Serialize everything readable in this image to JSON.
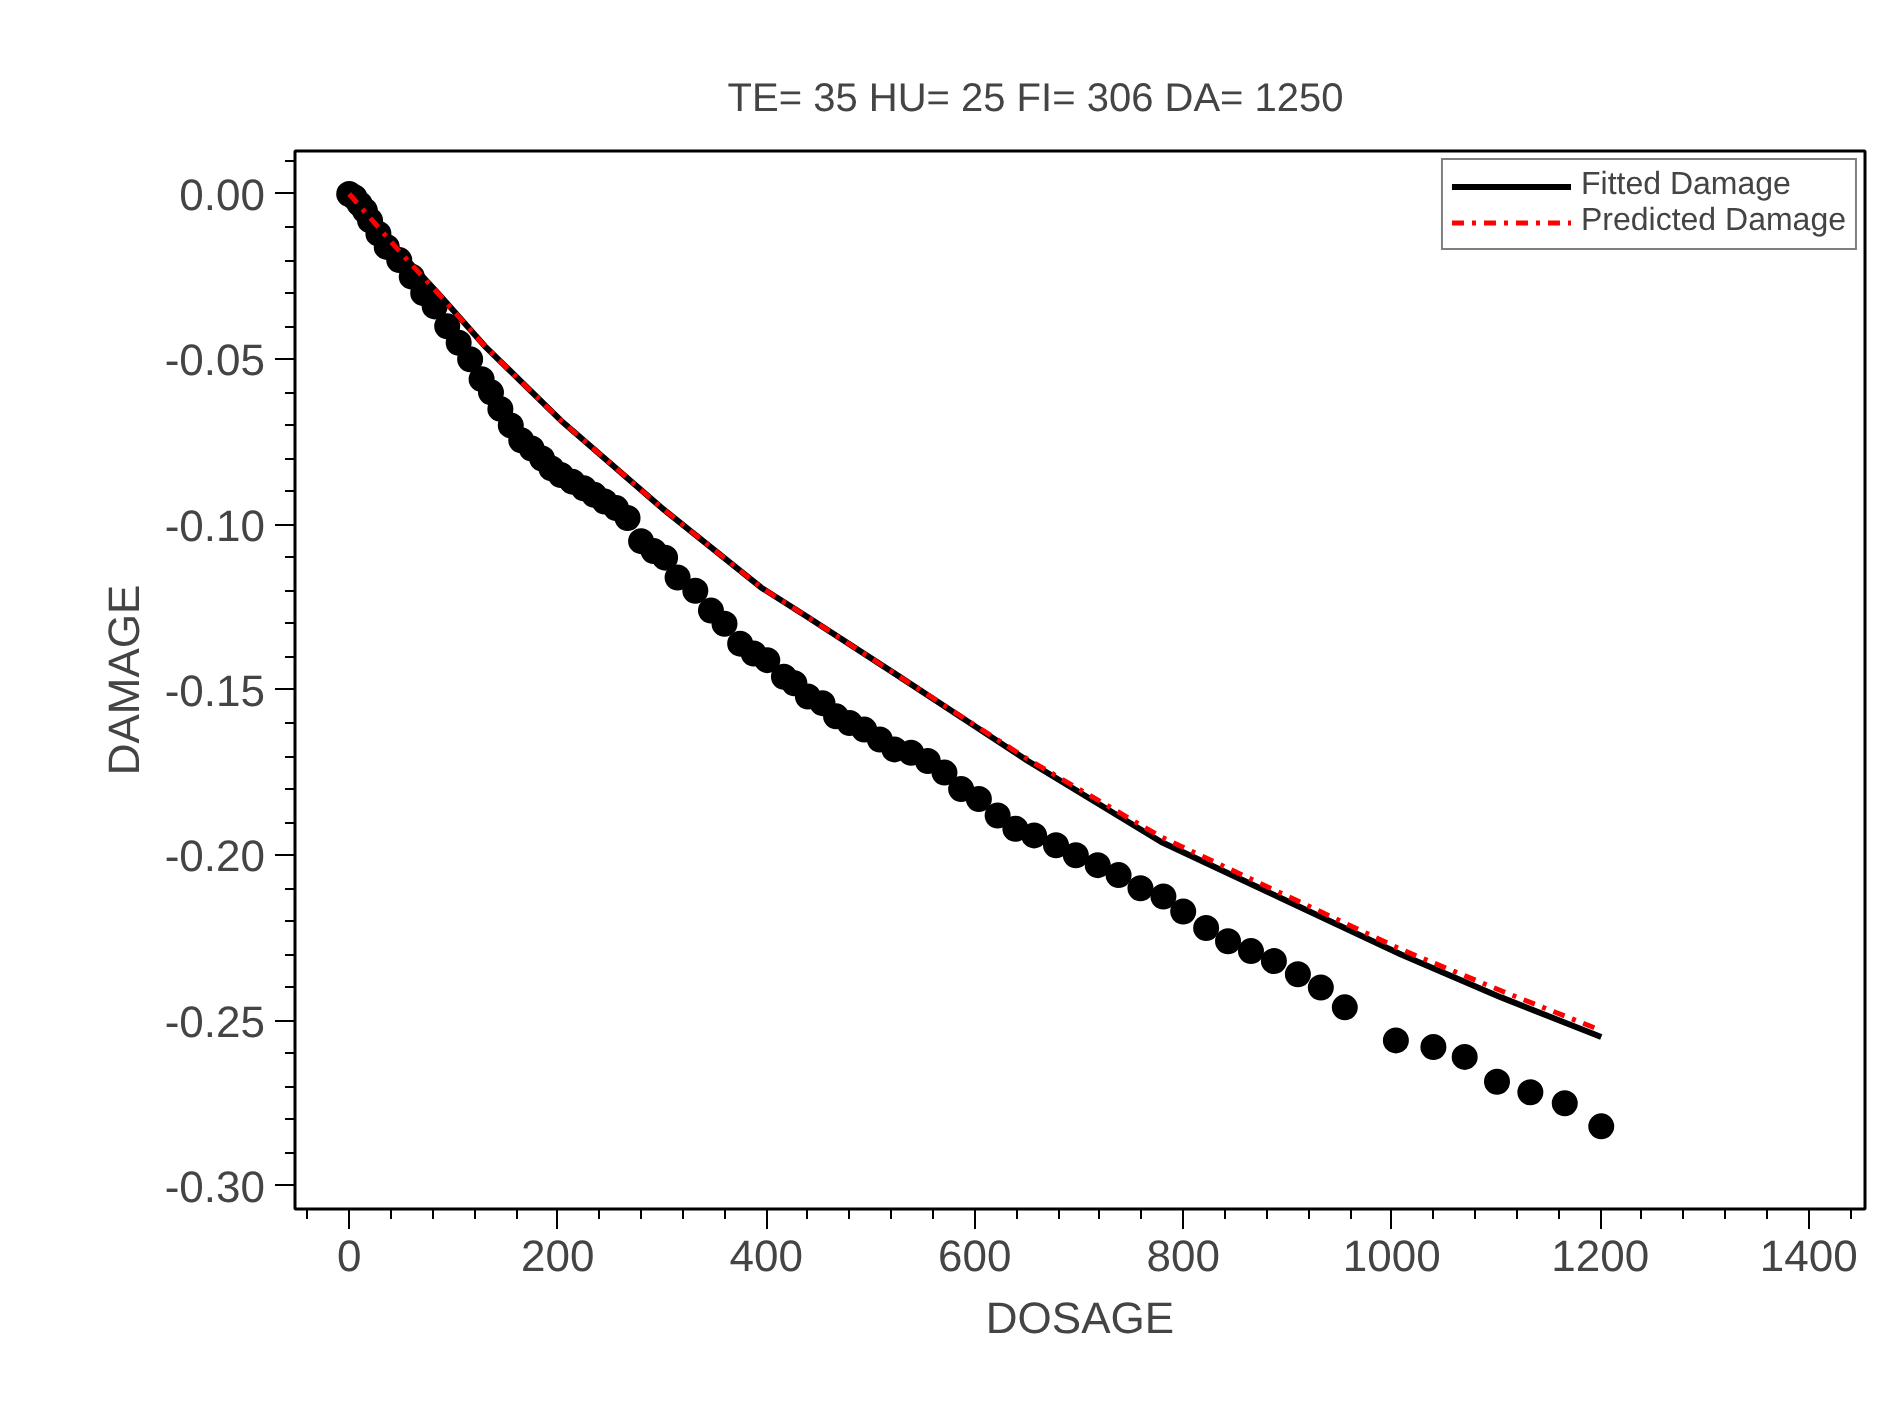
{
  "chart_data": {
    "type": "scatter",
    "title": "TE=  35  HU=  25   FI=  306  DA=  1250",
    "xlabel": "DOSAGE",
    "ylabel": "DAMAGE",
    "xlim": [
      -52,
      1454
    ],
    "ylim": [
      -0.307,
      0.013
    ],
    "xticks": [
      0,
      200,
      400,
      600,
      800,
      1000,
      1200,
      1400
    ],
    "yticks": [
      {
        "value": 0,
        "label": "0.00"
      },
      {
        "value": -0.05,
        "label": "-0.05"
      },
      {
        "value": -0.1,
        "label": "-0.10"
      },
      {
        "value": -0.15,
        "label": "-0.15"
      },
      {
        "value": -0.2,
        "label": "-0.20"
      },
      {
        "value": -0.25,
        "label": "-0.25"
      },
      {
        "value": -0.3,
        "label": "-0.30"
      }
    ],
    "grid": false,
    "legend": "top right",
    "series": [
      {
        "marker": "circle",
        "color": "#000000",
        "x": [
          0,
          5,
          10,
          15,
          20,
          28,
          36,
          48,
          60,
          71,
          82,
          94,
          105,
          116,
          127,
          136,
          145,
          155,
          165,
          175,
          185,
          194,
          203,
          214,
          225,
          235,
          245,
          256,
          267,
          280,
          292,
          303,
          315,
          332,
          347,
          360,
          375,
          388,
          401,
          417,
          427,
          440,
          454,
          467,
          480,
          494,
          509,
          523,
          539,
          555,
          571,
          587,
          604,
          622,
          639,
          657,
          678,
          697,
          718,
          738,
          759,
          781,
          800,
          822,
          843,
          865,
          887,
          910,
          932,
          955,
          1004,
          1040,
          1070,
          1101,
          1133,
          1166,
          1201
        ],
        "values": [
          0,
          -0.001,
          -0.003,
          -0.005,
          -0.008,
          -0.012,
          -0.016,
          -0.02,
          -0.025,
          -0.03,
          -0.034,
          -0.04,
          -0.045,
          -0.05,
          -0.056,
          -0.06,
          -0.065,
          -0.07,
          -0.0745,
          -0.077,
          -0.08,
          -0.083,
          -0.085,
          -0.087,
          -0.089,
          -0.091,
          -0.093,
          -0.095,
          -0.098,
          -0.105,
          -0.108,
          -0.11,
          -0.116,
          -0.12,
          -0.126,
          -0.13,
          -0.136,
          -0.139,
          -0.141,
          -0.146,
          -0.148,
          -0.152,
          -0.154,
          -0.158,
          -0.16,
          -0.162,
          -0.165,
          -0.168,
          -0.169,
          -0.1715,
          -0.175,
          -0.18,
          -0.183,
          -0.188,
          -0.192,
          -0.194,
          -0.197,
          -0.2,
          -0.203,
          -0.206,
          -0.21,
          -0.2125,
          -0.217,
          -0.222,
          -0.226,
          -0.229,
          -0.232,
          -0.236,
          -0.24,
          -0.246,
          -0.256,
          -0.258,
          -0.261,
          -0.2685,
          -0.2717,
          -0.275,
          -0.282
        ]
      },
      {
        "type": "line",
        "name": "Fitted Damage",
        "color": "#000000",
        "line_style": "solid",
        "x": [
          0,
          25,
          50,
          88,
          130,
          203,
          300,
          395,
          440,
          523,
          651,
          779,
          894,
          1009,
          1105,
          1201
        ],
        "values": [
          0,
          -0.009,
          -0.018,
          -0.031,
          -0.046,
          -0.0685,
          -0.095,
          -0.119,
          -0.128,
          -0.145,
          -0.1715,
          -0.196,
          -0.213,
          -0.23,
          -0.243,
          -0.255
        ]
      },
      {
        "type": "line",
        "name": "Predicted Damage",
        "color": "#ff0000",
        "line_style": "dashdot",
        "x": [
          0,
          25,
          50,
          88,
          130,
          203,
          300,
          395,
          440,
          523,
          651,
          779,
          894,
          1009,
          1105,
          1201
        ],
        "values": [
          0,
          -0.009,
          -0.018,
          -0.031,
          -0.046,
          -0.0685,
          -0.095,
          -0.119,
          -0.128,
          -0.145,
          -0.171,
          -0.1945,
          -0.2115,
          -0.2285,
          -0.241,
          -0.253
        ]
      }
    ]
  }
}
